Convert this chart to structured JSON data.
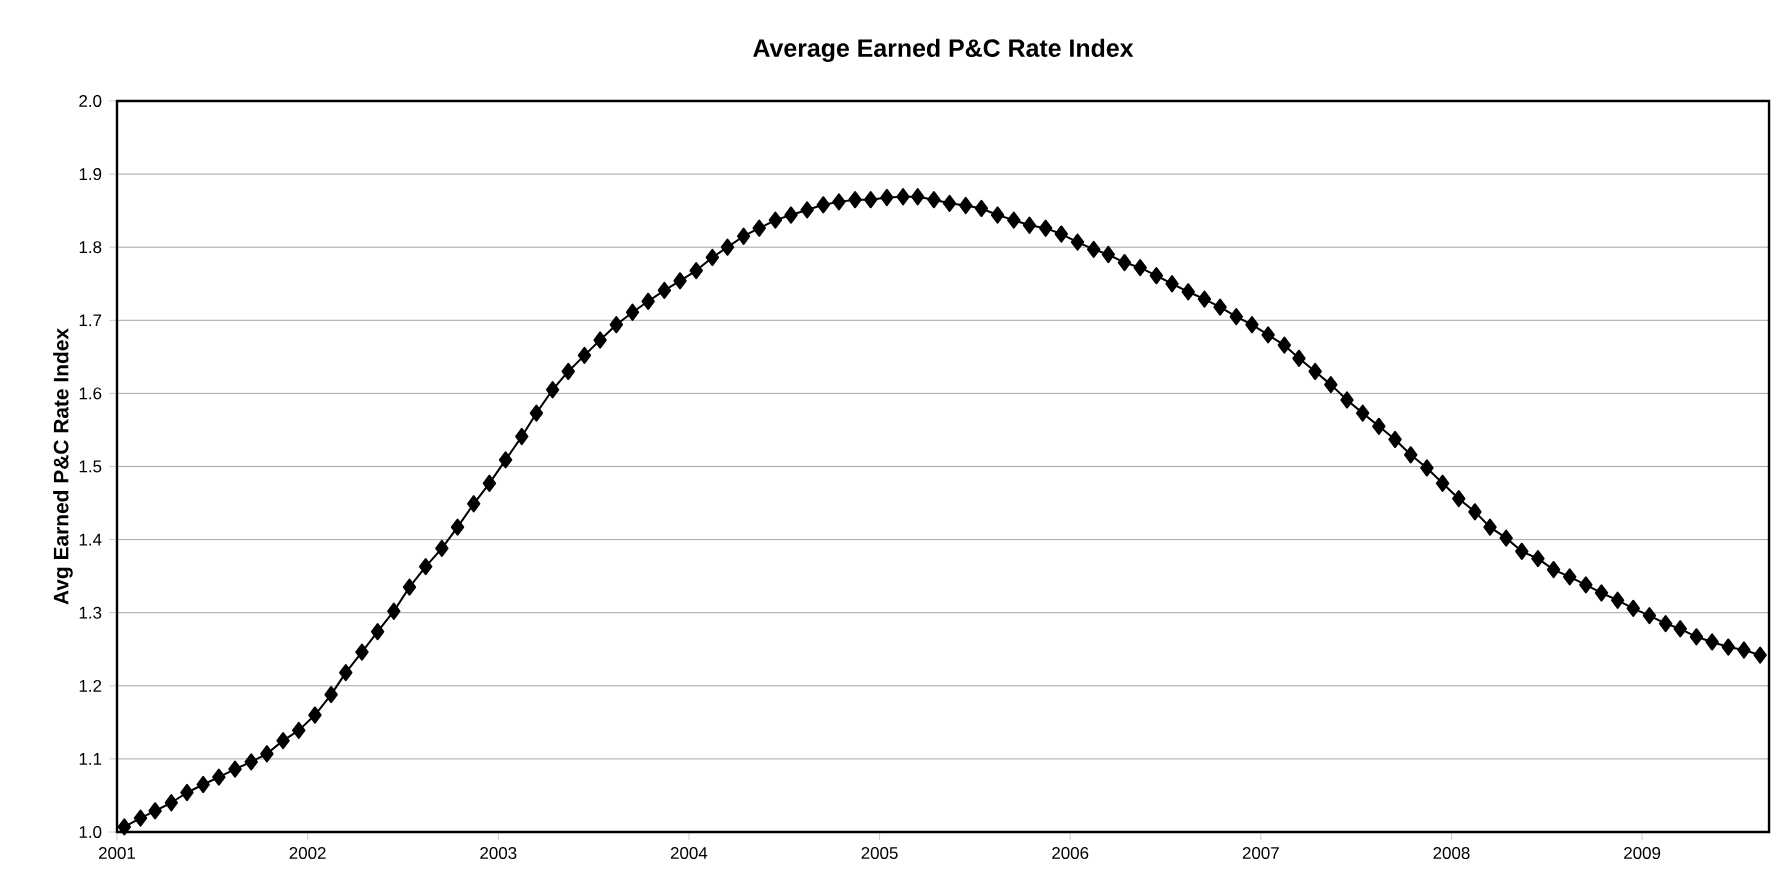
{
  "chart_data": {
    "type": "line",
    "title": "Average Earned P&C Rate Index",
    "ylabel": "Avg Earned P&C Rate Index",
    "x": [
      "2001-01-15",
      "2001-02-15",
      "2001-03-15",
      "2001-04-15",
      "2001-05-15",
      "2001-06-15",
      "2001-07-15",
      "2001-08-15",
      "2001-09-15",
      "2001-10-15",
      "2001-11-15",
      "2001-12-15",
      "2002-01-15",
      "2002-02-15",
      "2002-03-15",
      "2002-04-15",
      "2002-05-15",
      "2002-06-15",
      "2002-07-15",
      "2002-08-15",
      "2002-09-15",
      "2002-10-15",
      "2002-11-15",
      "2002-12-15",
      "2003-01-15",
      "2003-02-15",
      "2003-03-15",
      "2003-04-15",
      "2003-05-15",
      "2003-06-15",
      "2003-07-15",
      "2003-08-15",
      "2003-09-15",
      "2003-10-15",
      "2003-11-15",
      "2003-12-15",
      "2004-01-15",
      "2004-02-15",
      "2004-03-15",
      "2004-04-15",
      "2004-05-15",
      "2004-06-15",
      "2004-07-15",
      "2004-08-15",
      "2004-09-15",
      "2004-10-15",
      "2004-11-15",
      "2004-12-15",
      "2005-01-15",
      "2005-02-15",
      "2005-03-15",
      "2005-04-15",
      "2005-05-15",
      "2005-06-15",
      "2005-07-15",
      "2005-08-15",
      "2005-09-15",
      "2005-10-15",
      "2005-11-15",
      "2005-12-15",
      "2006-01-15",
      "2006-02-15",
      "2006-03-15",
      "2006-04-15",
      "2006-05-15",
      "2006-06-15",
      "2006-07-15",
      "2006-08-15",
      "2006-09-15",
      "2006-10-15",
      "2006-11-15",
      "2006-12-15",
      "2007-01-15",
      "2007-02-15",
      "2007-03-15",
      "2007-04-15",
      "2007-05-15",
      "2007-06-15",
      "2007-07-15",
      "2007-08-15",
      "2007-09-15",
      "2007-10-15",
      "2007-11-15",
      "2007-12-15",
      "2008-01-15",
      "2008-02-15",
      "2008-03-15",
      "2008-04-15",
      "2008-05-15",
      "2008-06-15",
      "2008-07-15",
      "2008-08-15",
      "2008-09-15",
      "2008-10-15",
      "2008-11-15",
      "2008-12-15",
      "2009-01-15",
      "2009-02-15",
      "2009-03-15",
      "2009-04-15",
      "2009-05-15",
      "2009-06-15",
      "2009-07-15",
      "2009-08-15"
    ],
    "series": [
      {
        "color": "#000000",
        "values": [
          1.007,
          1.019,
          1.029,
          1.04,
          1.054,
          1.065,
          1.075,
          1.086,
          1.096,
          1.107,
          1.125,
          1.139,
          1.16,
          1.188,
          1.218,
          1.246,
          1.274,
          1.302,
          1.335,
          1.363,
          1.388,
          1.417,
          1.449,
          1.477,
          1.509,
          1.541,
          1.573,
          1.605,
          1.63,
          1.652,
          1.673,
          1.694,
          1.711,
          1.726,
          1.741,
          1.754,
          1.768,
          1.786,
          1.8,
          1.815,
          1.826,
          1.837,
          1.844,
          1.851,
          1.858,
          1.862,
          1.865,
          1.865,
          1.868,
          1.869,
          1.869,
          1.865,
          1.86,
          1.857,
          1.853,
          1.844,
          1.837,
          1.83,
          1.826,
          1.818,
          1.807,
          1.797,
          1.79,
          1.779,
          1.772,
          1.761,
          1.75,
          1.739,
          1.729,
          1.718,
          1.705,
          1.694,
          1.68,
          1.666,
          1.648,
          1.63,
          1.612,
          1.591,
          1.573,
          1.555,
          1.537,
          1.516,
          1.498,
          1.477,
          1.456,
          1.438,
          1.417,
          1.402,
          1.384,
          1.374,
          1.359,
          1.349,
          1.338,
          1.327,
          1.317,
          1.306,
          1.296,
          1.285,
          1.278,
          1.267,
          1.26,
          1.253,
          1.249,
          1.242
        ]
      }
    ],
    "xlim": [
      "2001-01-01",
      "2009-09-01"
    ],
    "xticks": [
      {
        "value": "2001-01-01",
        "label": "2001"
      },
      {
        "value": "2002-01-01",
        "label": "2002"
      },
      {
        "value": "2003-01-01",
        "label": "2003"
      },
      {
        "value": "2004-01-01",
        "label": "2004"
      },
      {
        "value": "2005-01-01",
        "label": "2005"
      },
      {
        "value": "2006-01-01",
        "label": "2006"
      },
      {
        "value": "2007-01-01",
        "label": "2007"
      },
      {
        "value": "2008-01-01",
        "label": "2008"
      },
      {
        "value": "2009-01-01",
        "label": "2009"
      }
    ],
    "ylim": [
      1.0,
      2.0
    ],
    "yticks": [
      {
        "value": 1.0,
        "label": "1.0"
      },
      1.1,
      1.2,
      1.3,
      1.4,
      1.5,
      1.6,
      1.7,
      1.8,
      1.9,
      {
        "value": 2.0,
        "label": "2.0"
      }
    ],
    "grid": "y",
    "marker": "diamond",
    "line_style": "solid"
  }
}
